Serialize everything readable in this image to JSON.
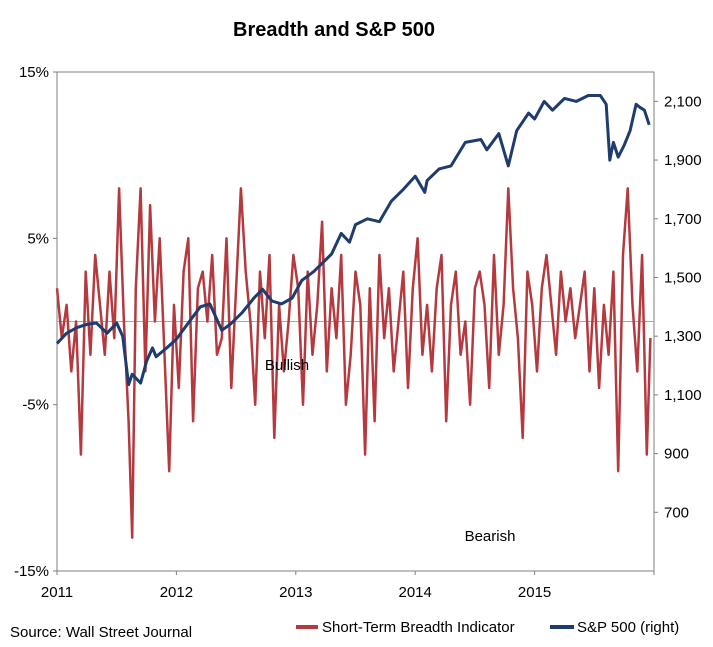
{
  "colors": {
    "breadth": "#b43a3f",
    "sp500": "#1f3c6e",
    "axis": "#7f7f7f",
    "zero": "#c49a9a"
  },
  "source": "Source:  Wall Street Journal",
  "chart_data": {
    "type": "line",
    "title": "Breadth and S&P 500",
    "xlabel": "",
    "x_ticks": [
      "2011",
      "2012",
      "2013",
      "2014",
      "2015"
    ],
    "x_range": [
      2011.0,
      2016.0
    ],
    "left_axis": {
      "ticks": [
        "15%",
        "5%",
        "-5%",
        "-15%"
      ],
      "values": [
        15,
        5,
        -5,
        -15
      ],
      "ylim": [
        -15,
        15
      ]
    },
    "right_axis": {
      "ticks": [
        "2,100",
        "1,900",
        "1,700",
        "1,500",
        "1,300",
        "1,100",
        "900",
        "700"
      ],
      "values": [
        2100,
        1900,
        1700,
        1500,
        1300,
        1100,
        900,
        700
      ],
      "ylim": [
        500,
        2200
      ]
    },
    "annotations": [
      "Bullish",
      "Bearish"
    ],
    "legend": {
      "placement": "bottom",
      "entries": [
        "Short-Term Breadth Indicator",
        "S&P 500 (right)"
      ]
    },
    "series": [
      {
        "name": "S&P 500 (right)",
        "axis": "right",
        "x": [
          2011.0,
          2011.08,
          2011.17,
          2011.25,
          2011.33,
          2011.42,
          2011.5,
          2011.55,
          2011.6,
          2011.63,
          2011.7,
          2011.75,
          2011.8,
          2011.83,
          2011.92,
          2012.0,
          2012.1,
          2012.2,
          2012.28,
          2012.38,
          2012.45,
          2012.55,
          2012.65,
          2012.72,
          2012.8,
          2012.88,
          2012.97,
          2013.05,
          2013.15,
          2013.3,
          2013.38,
          2013.45,
          2013.5,
          2013.6,
          2013.7,
          2013.8,
          2013.9,
          2014.0,
          2014.08,
          2014.1,
          2014.2,
          2014.3,
          2014.42,
          2014.55,
          2014.6,
          2014.7,
          2014.78,
          2014.85,
          2014.95,
          2015.0,
          2015.08,
          2015.15,
          2015.25,
          2015.35,
          2015.45,
          2015.55,
          2015.6,
          2015.63,
          2015.66,
          2015.7,
          2015.75,
          2015.8,
          2015.85,
          2015.88,
          2015.92,
          2015.96
        ],
        "values": [
          1275,
          1310,
          1330,
          1340,
          1345,
          1310,
          1345,
          1300,
          1135,
          1170,
          1140,
          1215,
          1260,
          1230,
          1260,
          1290,
          1345,
          1400,
          1410,
          1320,
          1340,
          1380,
          1430,
          1460,
          1420,
          1410,
          1430,
          1490,
          1520,
          1580,
          1650,
          1620,
          1680,
          1700,
          1690,
          1760,
          1800,
          1845,
          1790,
          1830,
          1870,
          1880,
          1960,
          1970,
          1935,
          1990,
          1880,
          2000,
          2060,
          2040,
          2100,
          2070,
          2110,
          2100,
          2120,
          2120,
          2090,
          1900,
          1960,
          1910,
          1950,
          2000,
          2090,
          2080,
          2070,
          2020
        ]
      },
      {
        "name": "Short-Term Breadth Indicator",
        "axis": "left",
        "x": [
          2011.0,
          2011.04,
          2011.08,
          2011.12,
          2011.16,
          2011.2,
          2011.24,
          2011.28,
          2011.32,
          2011.36,
          2011.4,
          2011.44,
          2011.48,
          2011.52,
          2011.56,
          2011.6,
          2011.63,
          2011.66,
          2011.7,
          2011.74,
          2011.78,
          2011.82,
          2011.86,
          2011.9,
          2011.94,
          2011.98,
          2012.02,
          2012.06,
          2012.1,
          2012.14,
          2012.18,
          2012.22,
          2012.26,
          2012.3,
          2012.34,
          2012.38,
          2012.42,
          2012.46,
          2012.5,
          2012.54,
          2012.58,
          2012.62,
          2012.66,
          2012.7,
          2012.74,
          2012.78,
          2012.82,
          2012.86,
          2012.9,
          2012.94,
          2012.98,
          2013.02,
          2013.06,
          2013.1,
          2013.14,
          2013.18,
          2013.22,
          2013.26,
          2013.3,
          2013.34,
          2013.38,
          2013.42,
          2013.46,
          2013.5,
          2013.54,
          2013.58,
          2013.62,
          2013.66,
          2013.7,
          2013.74,
          2013.78,
          2013.82,
          2013.86,
          2013.9,
          2013.94,
          2013.98,
          2014.02,
          2014.06,
          2014.1,
          2014.14,
          2014.18,
          2014.22,
          2014.26,
          2014.3,
          2014.34,
          2014.38,
          2014.42,
          2014.46,
          2014.5,
          2014.54,
          2014.58,
          2014.62,
          2014.66,
          2014.7,
          2014.74,
          2014.78,
          2014.82,
          2014.86,
          2014.9,
          2014.94,
          2014.98,
          2015.02,
          2015.06,
          2015.1,
          2015.14,
          2015.18,
          2015.22,
          2015.26,
          2015.3,
          2015.34,
          2015.38,
          2015.42,
          2015.46,
          2015.5,
          2015.54,
          2015.58,
          2015.62,
          2015.66,
          2015.7,
          2015.74,
          2015.78,
          2015.82,
          2015.86,
          2015.9,
          2015.94,
          2015.97
        ],
        "values": [
          2,
          -1,
          1,
          -3,
          0,
          -8,
          3,
          -2,
          4,
          1,
          -2,
          3,
          -1,
          8,
          0,
          -6,
          -13,
          2,
          8,
          -3,
          7,
          0,
          5,
          -2,
          -9,
          1,
          -4,
          3,
          5,
          -6,
          2,
          3,
          0,
          4,
          -2,
          -1,
          5,
          -4,
          2,
          8,
          3,
          0,
          -5,
          3,
          -1,
          4,
          -7,
          1,
          -3,
          0,
          4,
          2,
          -5,
          3,
          -2,
          1,
          6,
          -3,
          2,
          -1,
          4,
          -5,
          -2,
          3,
          1,
          -8,
          2,
          -6,
          4,
          -1,
          2,
          -3,
          0,
          3,
          -4,
          2,
          5,
          -2,
          1,
          -3,
          2,
          4,
          -6,
          1,
          3,
          -2,
          0,
          -5,
          2,
          3,
          1,
          -4,
          4,
          -2,
          1,
          8,
          2,
          -1,
          -7,
          3,
          1,
          -3,
          2,
          4,
          1,
          -2,
          3,
          0,
          2,
          -1,
          1,
          3,
          -3,
          2,
          -4,
          1,
          -2,
          3,
          -9,
          4,
          8,
          1,
          -3,
          4,
          -8,
          -1
        ]
      }
    ]
  }
}
